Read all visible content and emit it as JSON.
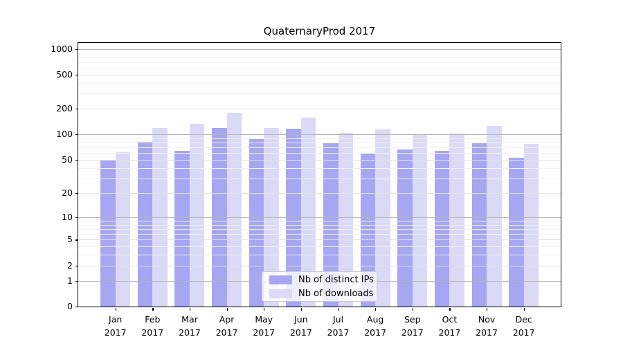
{
  "title": "QuaternaryProd 2017",
  "chart_data": {
    "type": "bar",
    "title": "QuaternaryProd 2017",
    "scale": "log1p (log axis with 0 baseline)",
    "categories": [
      "Jan",
      "Feb",
      "Mar",
      "Apr",
      "May",
      "Jun",
      "Jul",
      "Aug",
      "Sep",
      "Oct",
      "Nov",
      "Dec"
    ],
    "x_sublabel": "2017",
    "series": [
      {
        "name": "Nb of distinct IPs",
        "color": "#a6a6f2",
        "values": [
          50,
          82,
          64,
          120,
          88,
          116,
          78,
          61,
          66,
          64,
          80,
          53
        ]
      },
      {
        "name": "Nb of downloads",
        "color": "#dadaf7",
        "values": [
          62,
          118,
          132,
          180,
          119,
          158,
          105,
          115,
          98,
          103,
          126,
          77
        ]
      }
    ],
    "yticks": [
      0,
      1,
      2,
      5,
      10,
      20,
      50,
      100,
      200,
      500,
      1000
    ],
    "ytick_labels": [
      "0",
      "1",
      "2",
      "5",
      "10",
      "20",
      "50",
      "100",
      "200",
      "500",
      "1000"
    ],
    "ylim": [
      0,
      1174
    ],
    "legend_position": "lower center",
    "grid": "on",
    "colors": {
      "decade_gridline": "#b4b4b4",
      "major_gridline": "#e1e1e1",
      "minor_gridline": "#f1f1f1",
      "spine": "#000000",
      "background": "#ffffff"
    }
  }
}
